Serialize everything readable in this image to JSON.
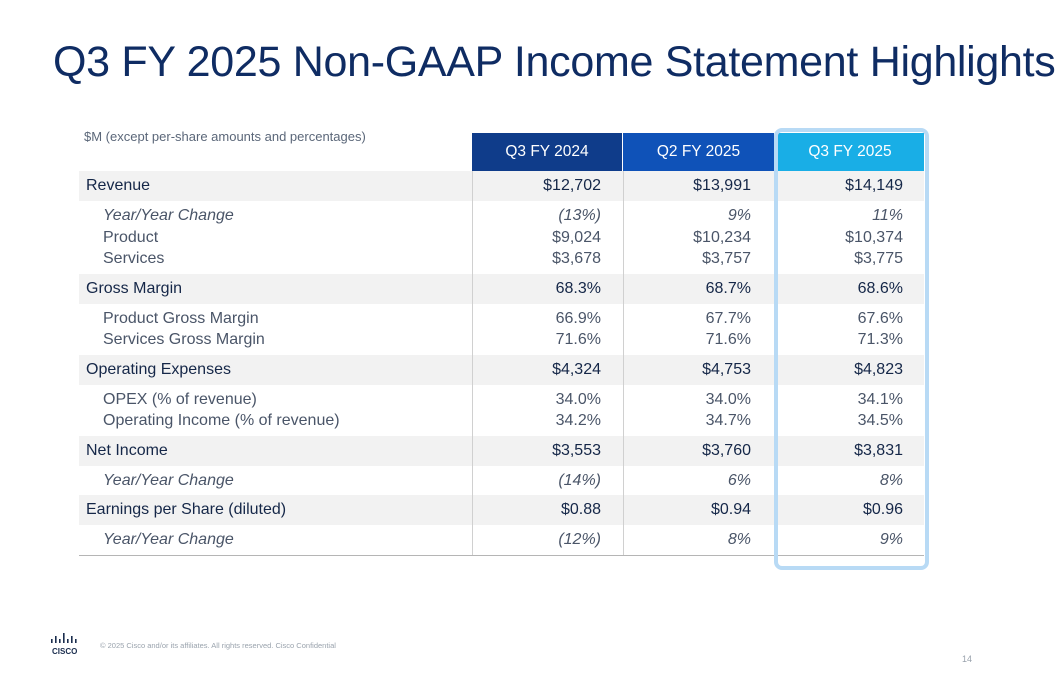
{
  "title": "Q3 FY 2025 Non-GAAP Income Statement Highlights",
  "units_note": "$M (except per-share amounts and percentages)",
  "columns": [
    "Q3 FY 2024",
    "Q2 FY 2025",
    "Q3 FY 2025"
  ],
  "sections": [
    {
      "label": "Revenue",
      "values": [
        "$12,702",
        "$13,991",
        "$14,149"
      ],
      "sub": [
        {
          "label": "Year/Year Change",
          "italic": true,
          "values": [
            "(13%)",
            "9%",
            "11%"
          ]
        },
        {
          "label": "Product",
          "italic": false,
          "values": [
            "$9,024",
            "$10,234",
            "$10,374"
          ]
        },
        {
          "label": "Services",
          "italic": false,
          "values": [
            "$3,678",
            "$3,757",
            "$3,775"
          ]
        }
      ]
    },
    {
      "label": "Gross Margin",
      "values": [
        "68.3%",
        "68.7%",
        "68.6%"
      ],
      "sub": [
        {
          "label": "Product Gross Margin",
          "italic": false,
          "values": [
            "66.9%",
            "67.7%",
            "67.6%"
          ]
        },
        {
          "label": "Services Gross Margin",
          "italic": false,
          "values": [
            "71.6%",
            "71.6%",
            "71.3%"
          ]
        }
      ]
    },
    {
      "label": "Operating Expenses",
      "values": [
        "$4,324",
        "$4,753",
        "$4,823"
      ],
      "sub": [
        {
          "label": "OPEX (% of revenue)",
          "italic": false,
          "values": [
            "34.0%",
            "34.0%",
            "34.1%"
          ]
        },
        {
          "label": "Operating Income (% of revenue)",
          "italic": false,
          "values": [
            "34.2%",
            "34.7%",
            "34.5%"
          ]
        }
      ]
    },
    {
      "label": "Net Income",
      "values": [
        "$3,553",
        "$3,760",
        "$3,831"
      ],
      "sub": [
        {
          "label": "Year/Year Change",
          "italic": true,
          "values": [
            "(14%)",
            "6%",
            "8%"
          ]
        }
      ]
    },
    {
      "label": "Earnings per Share (diluted)",
      "values": [
        "$0.88",
        "$0.94",
        "$0.96"
      ],
      "sub": [
        {
          "label": "Year/Year Change",
          "italic": true,
          "values": [
            "(12%)",
            "8%",
            "9%"
          ]
        }
      ]
    }
  ],
  "footer": {
    "logo_text": "CISCO",
    "copyright": "© 2025  Cisco and/or its affiliates. All rights reserved.   Cisco Confidential",
    "page_number": "14"
  },
  "colors": {
    "title": "#0f2c63",
    "col1_header": "#0f3c8a",
    "col2_header": "#0f52b8",
    "col3_header": "#19aee6",
    "highlight_border": "#b8daf5"
  }
}
